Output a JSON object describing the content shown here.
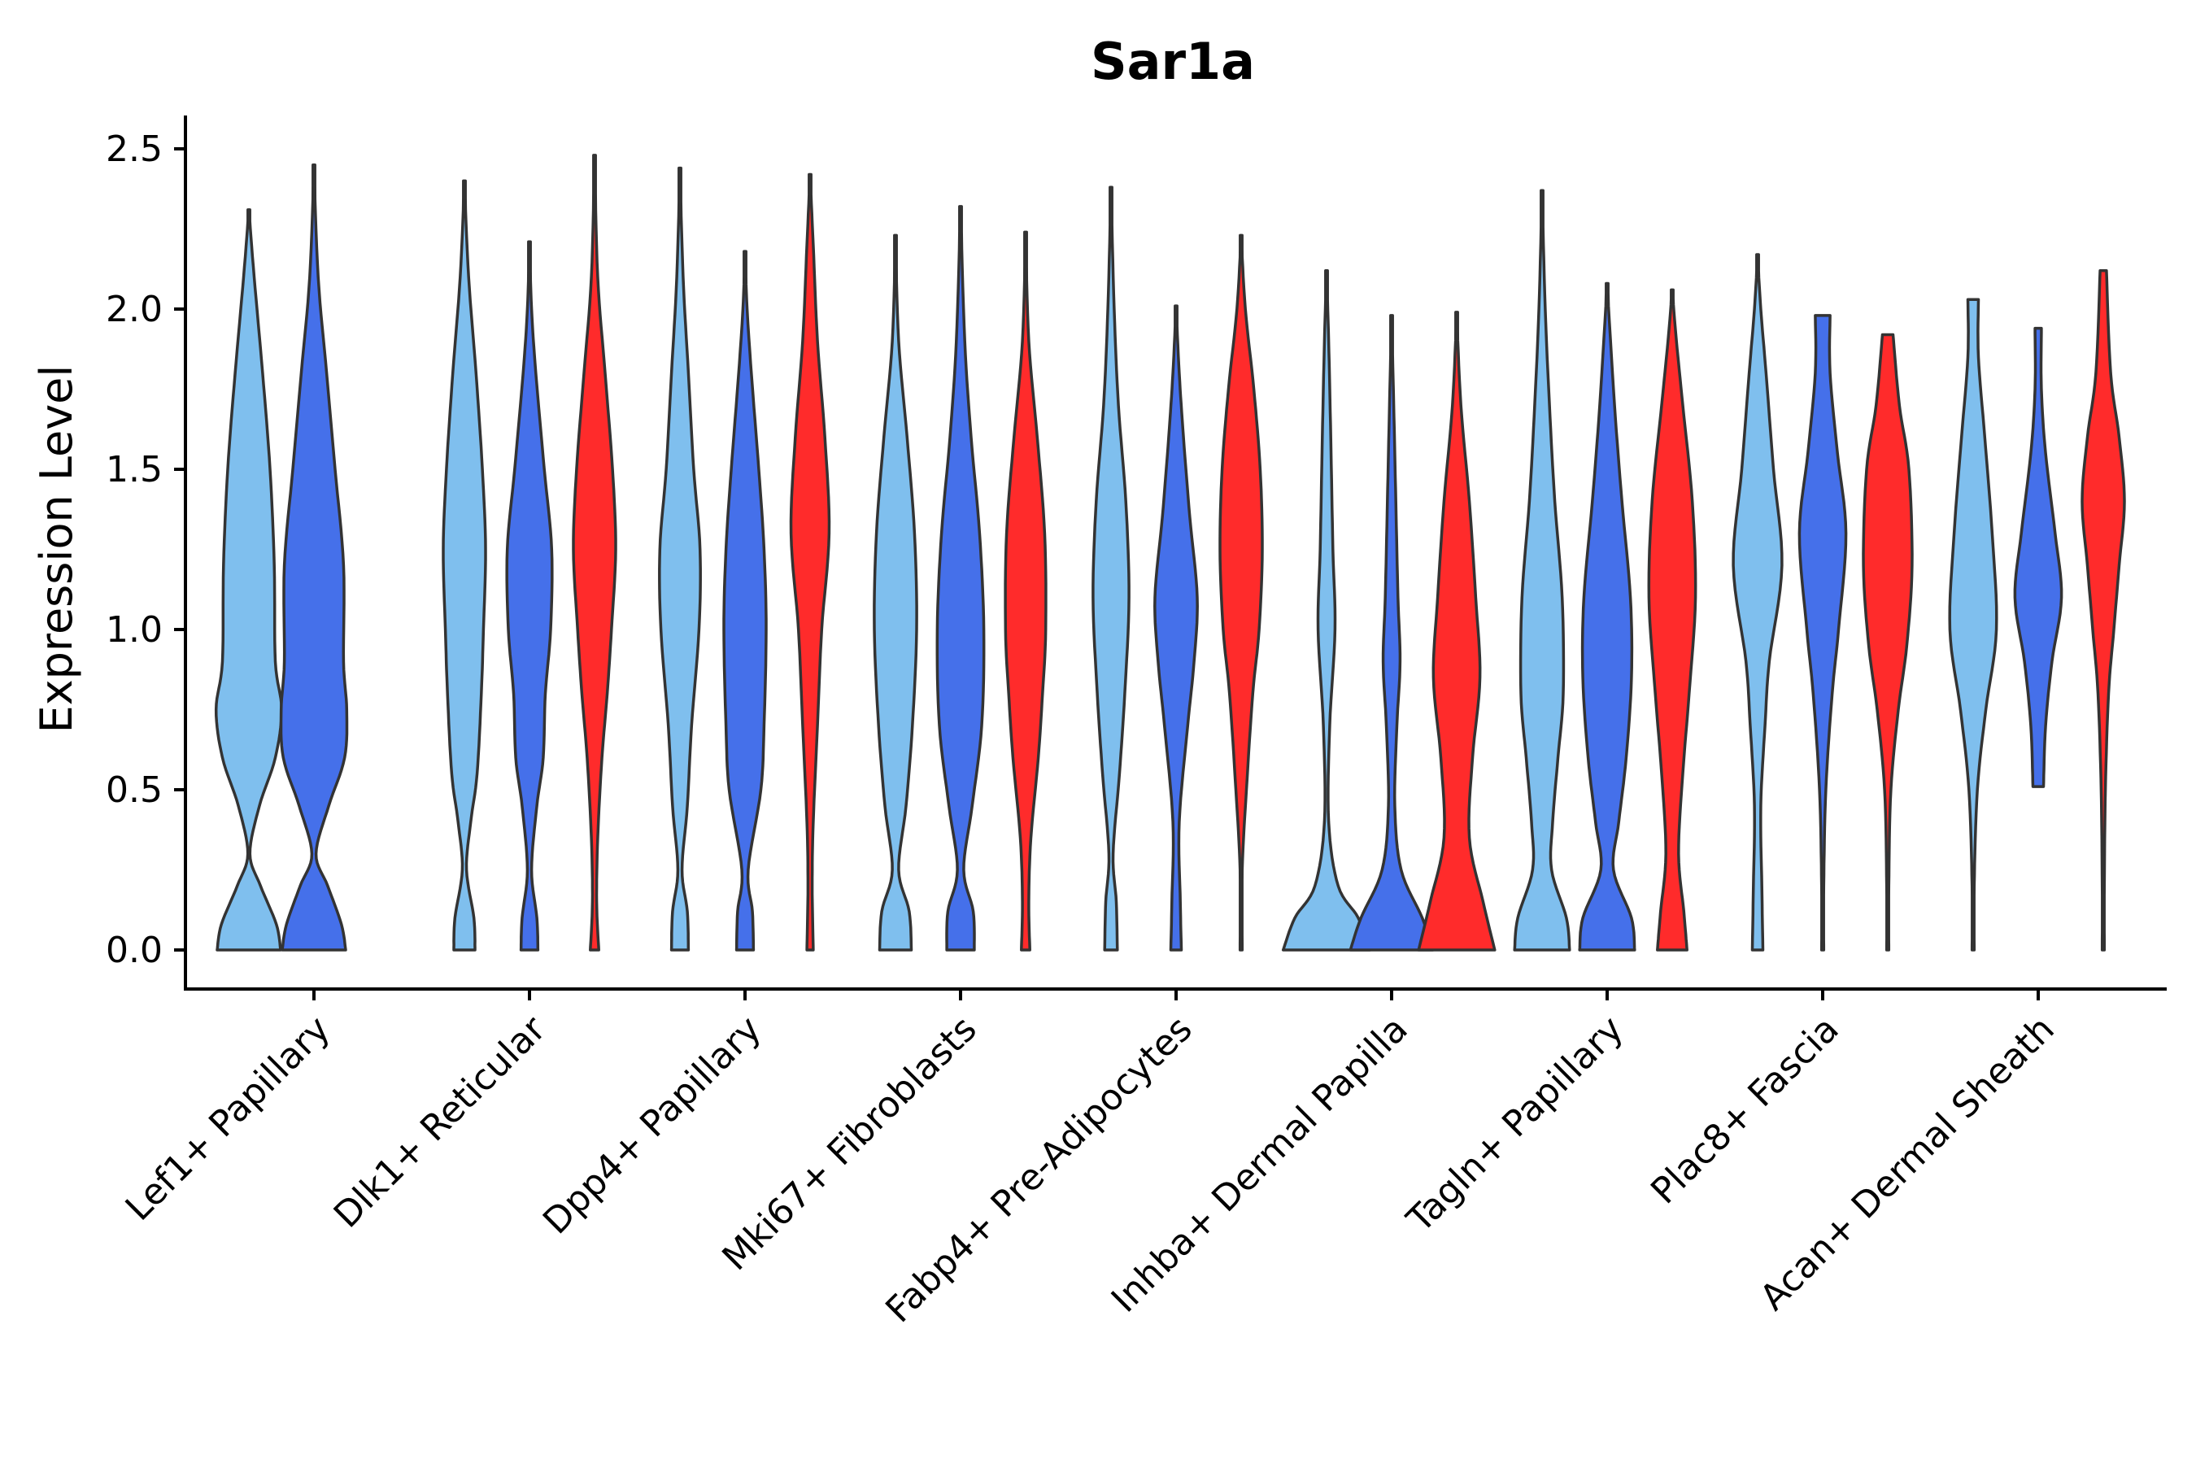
{
  "chart_data": {
    "type": "violin",
    "title": "Sar1a",
    "xlabel": "",
    "ylabel": "Expression Level",
    "ylim": [
      -0.12,
      2.6
    ],
    "yticks": [
      "0.0",
      "0.5",
      "1.0",
      "1.5",
      "2.0",
      "2.5"
    ],
    "ytick_values": [
      0,
      0.5,
      1.0,
      1.5,
      2.0,
      2.5
    ],
    "categories": [
      "Lef1+ Papillary",
      "Dlk1+ Reticular",
      "Dpp4+ Papillary",
      "Mki67+ Fibroblasts",
      "Fabp4+ Pre-Adipocytes",
      "Inhba+ Dermal Papilla",
      "Tagln+ Papillary",
      "Plac8+ Fascia",
      "Acan+ Dermal Sheath"
    ],
    "groups": [
      {
        "name": "group-1",
        "color": "#7FBFEE"
      },
      {
        "name": "group-2",
        "color": "#4570EA"
      },
      {
        "name": "group-3",
        "color": "#FF2B2B"
      }
    ],
    "violins": [
      {
        "category": 0,
        "group": 0,
        "min": 0,
        "max": 2.31,
        "profile": [
          [
            0,
            0.6
          ],
          [
            0.08,
            0.52
          ],
          [
            0.2,
            0.22
          ],
          [
            0.3,
            0.02
          ],
          [
            0.45,
            0.2
          ],
          [
            0.6,
            0.5
          ],
          [
            0.75,
            0.62
          ],
          [
            0.9,
            0.5
          ],
          [
            1.2,
            0.48
          ],
          [
            1.5,
            0.4
          ],
          [
            1.8,
            0.26
          ],
          [
            2.1,
            0.1
          ],
          [
            2.31,
            0
          ]
        ]
      },
      {
        "category": 0,
        "group": 1,
        "min": 0,
        "max": 2.45,
        "profile": [
          [
            0,
            0.6
          ],
          [
            0.08,
            0.52
          ],
          [
            0.2,
            0.26
          ],
          [
            0.3,
            0.04
          ],
          [
            0.45,
            0.28
          ],
          [
            0.6,
            0.58
          ],
          [
            0.75,
            0.62
          ],
          [
            0.9,
            0.56
          ],
          [
            1.2,
            0.56
          ],
          [
            1.5,
            0.4
          ],
          [
            1.8,
            0.24
          ],
          [
            2.1,
            0.08
          ],
          [
            2.45,
            0
          ]
        ]
      },
      {
        "category": 1,
        "group": 0,
        "min": 0,
        "max": 2.4,
        "profile": [
          [
            0,
            0.2
          ],
          [
            0.1,
            0.18
          ],
          [
            0.25,
            0.04
          ],
          [
            0.4,
            0.12
          ],
          [
            0.55,
            0.24
          ],
          [
            0.8,
            0.32
          ],
          [
            1.0,
            0.36
          ],
          [
            1.25,
            0.4
          ],
          [
            1.5,
            0.34
          ],
          [
            1.8,
            0.22
          ],
          [
            2.1,
            0.08
          ],
          [
            2.4,
            0
          ]
        ]
      },
      {
        "category": 1,
        "group": 1,
        "min": 0,
        "max": 2.21,
        "profile": [
          [
            0,
            0.16
          ],
          [
            0.1,
            0.14
          ],
          [
            0.25,
            0.04
          ],
          [
            0.45,
            0.14
          ],
          [
            0.6,
            0.26
          ],
          [
            0.8,
            0.3
          ],
          [
            1.0,
            0.4
          ],
          [
            1.25,
            0.42
          ],
          [
            1.5,
            0.28
          ],
          [
            1.8,
            0.12
          ],
          [
            2.0,
            0.04
          ],
          [
            2.21,
            0
          ]
        ]
      },
      {
        "category": 1,
        "group": 2,
        "min": 0,
        "max": 2.48,
        "profile": [
          [
            0,
            0.08
          ],
          [
            0.15,
            0.04
          ],
          [
            0.35,
            0.06
          ],
          [
            0.6,
            0.14
          ],
          [
            0.8,
            0.24
          ],
          [
            1.0,
            0.32
          ],
          [
            1.25,
            0.4
          ],
          [
            1.5,
            0.34
          ],
          [
            1.8,
            0.2
          ],
          [
            2.1,
            0.06
          ],
          [
            2.48,
            0
          ]
        ]
      },
      {
        "category": 2,
        "group": 0,
        "min": 0,
        "max": 2.44,
        "profile": [
          [
            0,
            0.16
          ],
          [
            0.12,
            0.14
          ],
          [
            0.25,
            0.04
          ],
          [
            0.45,
            0.14
          ],
          [
            0.7,
            0.22
          ],
          [
            1.0,
            0.36
          ],
          [
            1.25,
            0.38
          ],
          [
            1.5,
            0.26
          ],
          [
            1.8,
            0.16
          ],
          [
            2.1,
            0.06
          ],
          [
            2.44,
            0
          ]
        ]
      },
      {
        "category": 2,
        "group": 1,
        "min": 0,
        "max": 2.18,
        "profile": [
          [
            0,
            0.16
          ],
          [
            0.12,
            0.14
          ],
          [
            0.25,
            0.06
          ],
          [
            0.5,
            0.3
          ],
          [
            0.7,
            0.36
          ],
          [
            1.0,
            0.4
          ],
          [
            1.25,
            0.36
          ],
          [
            1.5,
            0.26
          ],
          [
            1.8,
            0.12
          ],
          [
            2.0,
            0.04
          ],
          [
            2.18,
            0
          ]
        ]
      },
      {
        "category": 2,
        "group": 2,
        "min": 0,
        "max": 2.42,
        "profile": [
          [
            0,
            0.06
          ],
          [
            0.2,
            0.04
          ],
          [
            0.4,
            0.06
          ],
          [
            0.7,
            0.14
          ],
          [
            1.0,
            0.22
          ],
          [
            1.3,
            0.36
          ],
          [
            1.6,
            0.28
          ],
          [
            1.9,
            0.14
          ],
          [
            2.2,
            0.06
          ],
          [
            2.42,
            0
          ]
        ]
      },
      {
        "category": 3,
        "group": 0,
        "min": 0,
        "max": 2.23,
        "profile": [
          [
            0,
            0.3
          ],
          [
            0.12,
            0.26
          ],
          [
            0.25,
            0.06
          ],
          [
            0.45,
            0.2
          ],
          [
            0.7,
            0.32
          ],
          [
            1.0,
            0.4
          ],
          [
            1.3,
            0.36
          ],
          [
            1.6,
            0.22
          ],
          [
            1.9,
            0.06
          ],
          [
            2.23,
            0
          ]
        ]
      },
      {
        "category": 3,
        "group": 1,
        "min": 0,
        "max": 2.32,
        "profile": [
          [
            0,
            0.26
          ],
          [
            0.12,
            0.24
          ],
          [
            0.25,
            0.06
          ],
          [
            0.45,
            0.22
          ],
          [
            0.7,
            0.4
          ],
          [
            1.0,
            0.44
          ],
          [
            1.3,
            0.36
          ],
          [
            1.6,
            0.2
          ],
          [
            1.9,
            0.08
          ],
          [
            2.32,
            0
          ]
        ]
      },
      {
        "category": 3,
        "group": 2,
        "min": 0,
        "max": 2.24,
        "profile": [
          [
            0,
            0.08
          ],
          [
            0.15,
            0.06
          ],
          [
            0.35,
            0.1
          ],
          [
            0.6,
            0.24
          ],
          [
            0.8,
            0.32
          ],
          [
            1.0,
            0.38
          ],
          [
            1.3,
            0.36
          ],
          [
            1.6,
            0.22
          ],
          [
            1.9,
            0.06
          ],
          [
            2.24,
            0
          ]
        ]
      },
      {
        "category": 4,
        "group": 0,
        "min": 0,
        "max": 2.38,
        "profile": [
          [
            0,
            0.12
          ],
          [
            0.15,
            0.1
          ],
          [
            0.3,
            0.04
          ],
          [
            0.55,
            0.16
          ],
          [
            0.8,
            0.26
          ],
          [
            1.1,
            0.34
          ],
          [
            1.4,
            0.28
          ],
          [
            1.7,
            0.14
          ],
          [
            2.0,
            0.06
          ],
          [
            2.38,
            0
          ]
        ]
      },
      {
        "category": 4,
        "group": 1,
        "min": 0,
        "max": 2.01,
        "profile": [
          [
            0,
            0.1
          ],
          [
            0.15,
            0.08
          ],
          [
            0.4,
            0.06
          ],
          [
            0.7,
            0.22
          ],
          [
            0.9,
            0.34
          ],
          [
            1.1,
            0.4
          ],
          [
            1.35,
            0.26
          ],
          [
            1.6,
            0.14
          ],
          [
            1.8,
            0.06
          ],
          [
            2.01,
            0
          ]
        ]
      },
      {
        "category": 4,
        "group": 2,
        "min": 0,
        "max": 2.23,
        "profile": [
          [
            0,
            0.02
          ],
          [
            0.25,
            0.02
          ],
          [
            0.5,
            0.1
          ],
          [
            0.8,
            0.22
          ],
          [
            1.0,
            0.34
          ],
          [
            1.25,
            0.4
          ],
          [
            1.5,
            0.36
          ],
          [
            1.75,
            0.24
          ],
          [
            2.0,
            0.08
          ],
          [
            2.23,
            0
          ]
        ]
      },
      {
        "category": 5,
        "group": 0,
        "min": 0,
        "max": 2.12,
        "profile": [
          [
            0,
            0.82
          ],
          [
            0.1,
            0.6
          ],
          [
            0.2,
            0.22
          ],
          [
            0.4,
            0.04
          ],
          [
            0.7,
            0.06
          ],
          [
            1.0,
            0.16
          ],
          [
            1.25,
            0.12
          ],
          [
            1.6,
            0.08
          ],
          [
            1.9,
            0.04
          ],
          [
            2.12,
            0
          ]
        ]
      },
      {
        "category": 5,
        "group": 1,
        "min": 0,
        "max": 1.98,
        "profile": [
          [
            0,
            0.78
          ],
          [
            0.1,
            0.58
          ],
          [
            0.25,
            0.18
          ],
          [
            0.45,
            0.06
          ],
          [
            0.7,
            0.1
          ],
          [
            0.9,
            0.16
          ],
          [
            1.1,
            0.12
          ],
          [
            1.4,
            0.08
          ],
          [
            1.7,
            0.04
          ],
          [
            1.98,
            0
          ]
        ]
      },
      {
        "category": 5,
        "group": 2,
        "min": 0,
        "max": 1.99,
        "profile": [
          [
            0,
            0.72
          ],
          [
            0.15,
            0.5
          ],
          [
            0.35,
            0.24
          ],
          [
            0.6,
            0.3
          ],
          [
            0.85,
            0.44
          ],
          [
            1.1,
            0.36
          ],
          [
            1.4,
            0.24
          ],
          [
            1.7,
            0.08
          ],
          [
            1.99,
            0
          ]
        ]
      },
      {
        "category": 6,
        "group": 0,
        "min": 0,
        "max": 2.37,
        "profile": [
          [
            0,
            0.52
          ],
          [
            0.1,
            0.46
          ],
          [
            0.25,
            0.18
          ],
          [
            0.4,
            0.2
          ],
          [
            0.6,
            0.3
          ],
          [
            0.8,
            0.4
          ],
          [
            1.1,
            0.38
          ],
          [
            1.4,
            0.24
          ],
          [
            1.7,
            0.14
          ],
          [
            2.0,
            0.06
          ],
          [
            2.37,
            0
          ]
        ]
      },
      {
        "category": 6,
        "group": 1,
        "min": 0,
        "max": 2.08,
        "profile": [
          [
            0,
            0.52
          ],
          [
            0.1,
            0.46
          ],
          [
            0.25,
            0.12
          ],
          [
            0.4,
            0.22
          ],
          [
            0.6,
            0.36
          ],
          [
            0.85,
            0.46
          ],
          [
            1.1,
            0.44
          ],
          [
            1.4,
            0.28
          ],
          [
            1.7,
            0.14
          ],
          [
            2.08,
            0
          ]
        ]
      },
      {
        "category": 6,
        "group": 2,
        "min": 0,
        "max": 2.06,
        "profile": [
          [
            0,
            0.28
          ],
          [
            0.12,
            0.22
          ],
          [
            0.3,
            0.12
          ],
          [
            0.55,
            0.2
          ],
          [
            0.8,
            0.32
          ],
          [
            1.1,
            0.44
          ],
          [
            1.4,
            0.38
          ],
          [
            1.7,
            0.2
          ],
          [
            1.9,
            0.08
          ],
          [
            2.06,
            0
          ]
        ]
      },
      {
        "category": 7,
        "group": 0,
        "min": 0,
        "max": 2.17,
        "profile": [
          [
            0,
            0.1
          ],
          [
            0.2,
            0.08
          ],
          [
            0.45,
            0.06
          ],
          [
            0.7,
            0.14
          ],
          [
            0.9,
            0.22
          ],
          [
            1.2,
            0.46
          ],
          [
            1.5,
            0.3
          ],
          [
            1.8,
            0.16
          ],
          [
            2.0,
            0.06
          ],
          [
            2.17,
            0
          ]
        ]
      },
      {
        "category": 7,
        "group": 1,
        "min": 0,
        "max": 1.98,
        "profile": [
          [
            0,
            0.02
          ],
          [
            0.2,
            0.02
          ],
          [
            0.5,
            0.06
          ],
          [
            0.8,
            0.18
          ],
          [
            1.0,
            0.3
          ],
          [
            1.3,
            0.44
          ],
          [
            1.55,
            0.28
          ],
          [
            1.8,
            0.14
          ],
          [
            1.98,
            0.14
          ]
        ]
      },
      {
        "category": 7,
        "group": 2,
        "min": 0,
        "max": 1.92,
        "profile": [
          [
            0,
            0.02
          ],
          [
            0.2,
            0.02
          ],
          [
            0.5,
            0.06
          ],
          [
            0.75,
            0.2
          ],
          [
            0.95,
            0.36
          ],
          [
            1.2,
            0.46
          ],
          [
            1.5,
            0.4
          ],
          [
            1.7,
            0.22
          ],
          [
            1.92,
            0.1
          ]
        ]
      },
      {
        "category": 8,
        "group": 0,
        "min": 0,
        "max": 2.03,
        "profile": [
          [
            0,
            0.02
          ],
          [
            0.2,
            0.02
          ],
          [
            0.5,
            0.08
          ],
          [
            0.75,
            0.24
          ],
          [
            1.0,
            0.44
          ],
          [
            1.3,
            0.36
          ],
          [
            1.6,
            0.22
          ],
          [
            1.85,
            0.1
          ],
          [
            2.03,
            0.1
          ]
        ]
      },
      {
        "category": 8,
        "group": 1,
        "min": 0.51,
        "max": 1.94,
        "profile": [
          [
            0.51,
            0.1
          ],
          [
            0.7,
            0.14
          ],
          [
            0.9,
            0.26
          ],
          [
            1.1,
            0.44
          ],
          [
            1.3,
            0.32
          ],
          [
            1.55,
            0.14
          ],
          [
            1.75,
            0.06
          ],
          [
            1.94,
            0.06
          ]
        ]
      },
      {
        "category": 8,
        "group": 2,
        "min": 0,
        "max": 2.12,
        "profile": [
          [
            0,
            0.02
          ],
          [
            0.2,
            0.02
          ],
          [
            0.5,
            0.04
          ],
          [
            0.8,
            0.1
          ],
          [
            1.0,
            0.2
          ],
          [
            1.2,
            0.3
          ],
          [
            1.4,
            0.4
          ],
          [
            1.6,
            0.3
          ],
          [
            1.8,
            0.14
          ],
          [
            2.12,
            0.06
          ]
        ]
      }
    ]
  }
}
